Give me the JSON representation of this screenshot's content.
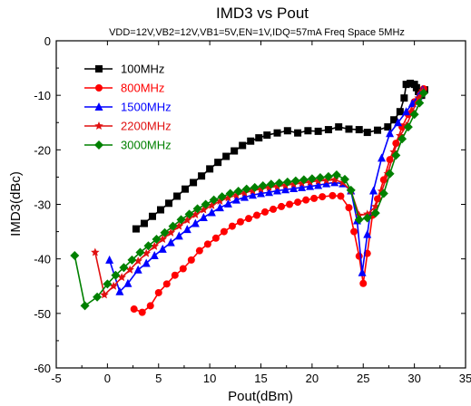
{
  "chart_data": {
    "type": "line",
    "title": "IMD3 vs  Pout",
    "subtitle": "VDD=12V,VB2=12V,VB1=5V,EN=1V,IDQ=57mA Freq Space 5MHz",
    "xlabel": "Pout(dBm)",
    "ylabel": "IMD3(dBc)",
    "xlim": [
      -5,
      35
    ],
    "ylim": [
      -60,
      0
    ],
    "xticks": [
      "-5",
      "0",
      "5",
      "10",
      "15",
      "20",
      "25",
      "30",
      "35"
    ],
    "yticks": [
      "0",
      "-10",
      "-20",
      "-30",
      "-40",
      "-50",
      "-60"
    ],
    "grid": false,
    "legend_position": "top-left",
    "series": [
      {
        "name": "100MHz",
        "color": "#000000",
        "marker": "square",
        "points": [
          [
            2.8,
            -34.5
          ],
          [
            3.6,
            -33.5
          ],
          [
            4.4,
            -32.2
          ],
          [
            5.2,
            -31.0
          ],
          [
            6.0,
            -29.8
          ],
          [
            6.8,
            -28.5
          ],
          [
            7.6,
            -27.2
          ],
          [
            8.4,
            -26.0
          ],
          [
            9.2,
            -24.8
          ],
          [
            10.0,
            -23.5
          ],
          [
            10.8,
            -22.3
          ],
          [
            11.6,
            -21.2
          ],
          [
            12.4,
            -20.2
          ],
          [
            13.2,
            -19.2
          ],
          [
            14.0,
            -18.4
          ],
          [
            14.8,
            -17.8
          ],
          [
            15.6,
            -17.3
          ],
          [
            16.6,
            -16.9
          ],
          [
            17.6,
            -16.5
          ],
          [
            18.6,
            -16.9
          ],
          [
            19.6,
            -16.5
          ],
          [
            20.6,
            -16.6
          ],
          [
            21.6,
            -16.3
          ],
          [
            22.6,
            -15.8
          ],
          [
            23.6,
            -16.2
          ],
          [
            24.6,
            -16.3
          ],
          [
            25.4,
            -16.8
          ],
          [
            26.4,
            -16.4
          ],
          [
            27.4,
            -15.8
          ],
          [
            28.0,
            -14.5
          ],
          [
            28.6,
            -13.0
          ],
          [
            29.0,
            -10.5
          ],
          [
            29.2,
            -8.0
          ],
          [
            29.6,
            -7.8
          ],
          [
            30.0,
            -8.0
          ],
          [
            30.2,
            -8.6
          ],
          [
            30.4,
            -9.3
          ],
          [
            30.7,
            -10.0
          ],
          [
            31.0,
            -9.0
          ]
        ]
      },
      {
        "name": "800MHz",
        "color": "#ff0000",
        "marker": "circle",
        "points": [
          [
            2.6,
            -49.2
          ],
          [
            3.4,
            -49.8
          ],
          [
            4.2,
            -48.6
          ],
          [
            5.0,
            -46.2
          ],
          [
            5.8,
            -44.6
          ],
          [
            6.6,
            -43.0
          ],
          [
            7.4,
            -41.8
          ],
          [
            8.2,
            -40.2
          ],
          [
            9.0,
            -38.5
          ],
          [
            9.8,
            -37.3
          ],
          [
            10.6,
            -36.2
          ],
          [
            11.4,
            -35.0
          ],
          [
            12.2,
            -34.0
          ],
          [
            13.0,
            -33.2
          ],
          [
            13.8,
            -32.6
          ],
          [
            14.6,
            -32.0
          ],
          [
            15.4,
            -31.4
          ],
          [
            16.2,
            -30.9
          ],
          [
            17.0,
            -30.4
          ],
          [
            17.8,
            -30.0
          ],
          [
            18.6,
            -29.6
          ],
          [
            19.4,
            -29.2
          ],
          [
            20.2,
            -28.9
          ],
          [
            21.0,
            -28.6
          ],
          [
            22.0,
            -28.4
          ],
          [
            22.8,
            -28.5
          ],
          [
            23.6,
            -30.6
          ],
          [
            24.1,
            -35.0
          ],
          [
            24.6,
            -39.5
          ],
          [
            25.0,
            -44.5
          ],
          [
            25.4,
            -39.0
          ],
          [
            25.9,
            -32.0
          ],
          [
            26.4,
            -29.0
          ],
          [
            27.0,
            -25.5
          ],
          [
            27.6,
            -21.8
          ],
          [
            28.2,
            -18.8
          ],
          [
            28.8,
            -15.8
          ],
          [
            29.4,
            -13.5
          ],
          [
            30.0,
            -11.2
          ],
          [
            30.6,
            -9.8
          ],
          [
            30.9,
            -8.8
          ]
        ]
      },
      {
        "name": "1500MHz",
        "color": "#0000ff",
        "marker": "triangle",
        "points": [
          [
            0.2,
            -40.2
          ],
          [
            1.2,
            -46.0
          ],
          [
            2.0,
            -44.5
          ],
          [
            3.0,
            -42.0
          ],
          [
            3.8,
            -40.8
          ],
          [
            4.6,
            -39.4
          ],
          [
            5.4,
            -38.2
          ],
          [
            6.2,
            -37.0
          ],
          [
            7.0,
            -35.8
          ],
          [
            7.8,
            -34.6
          ],
          [
            8.6,
            -33.5
          ],
          [
            9.4,
            -32.4
          ],
          [
            10.2,
            -31.5
          ],
          [
            11.0,
            -30.6
          ],
          [
            11.8,
            -29.9
          ],
          [
            12.6,
            -29.2
          ],
          [
            13.4,
            -28.7
          ],
          [
            14.2,
            -28.3
          ],
          [
            15.0,
            -28.0
          ],
          [
            15.8,
            -27.8
          ],
          [
            16.6,
            -27.5
          ],
          [
            17.4,
            -27.3
          ],
          [
            18.2,
            -27.1
          ],
          [
            19.0,
            -26.9
          ],
          [
            19.8,
            -26.7
          ],
          [
            20.6,
            -26.5
          ],
          [
            21.4,
            -26.2
          ],
          [
            22.2,
            -26.0
          ],
          [
            23.0,
            -26.2
          ],
          [
            23.8,
            -27.5
          ],
          [
            24.4,
            -33.0
          ],
          [
            24.9,
            -42.5
          ],
          [
            25.4,
            -35.5
          ],
          [
            26.0,
            -27.5
          ],
          [
            26.8,
            -21.5
          ],
          [
            27.6,
            -17.0
          ],
          [
            28.4,
            -15.0
          ],
          [
            29.2,
            -13.0
          ],
          [
            29.8,
            -11.5
          ],
          [
            30.4,
            -10.2
          ],
          [
            30.8,
            -9.0
          ]
        ]
      },
      {
        "name": "2200MHz",
        "color": "#e01010",
        "marker": "star",
        "points": [
          [
            -1.2,
            -38.8
          ],
          [
            -0.3,
            -46.6
          ],
          [
            0.6,
            -45.0
          ],
          [
            1.4,
            -43.4
          ],
          [
            2.2,
            -42.0
          ],
          [
            3.0,
            -40.4
          ],
          [
            3.8,
            -39.0
          ],
          [
            4.6,
            -37.7
          ],
          [
            5.4,
            -36.4
          ],
          [
            6.2,
            -35.2
          ],
          [
            7.0,
            -34.0
          ],
          [
            7.8,
            -32.9
          ],
          [
            8.6,
            -31.9
          ],
          [
            9.4,
            -31.0
          ],
          [
            10.2,
            -30.2
          ],
          [
            11.0,
            -29.4
          ],
          [
            11.8,
            -28.8
          ],
          [
            12.6,
            -28.3
          ],
          [
            13.4,
            -27.9
          ],
          [
            14.2,
            -27.5
          ],
          [
            15.0,
            -27.2
          ],
          [
            15.8,
            -26.9
          ],
          [
            16.6,
            -26.7
          ],
          [
            17.4,
            -26.5
          ],
          [
            18.2,
            -26.3
          ],
          [
            19.0,
            -26.1
          ],
          [
            19.8,
            -25.9
          ],
          [
            20.6,
            -25.7
          ],
          [
            21.4,
            -25.6
          ],
          [
            22.2,
            -25.5
          ],
          [
            23.0,
            -26.0
          ],
          [
            23.8,
            -27.5
          ],
          [
            24.6,
            -32.0
          ],
          [
            25.4,
            -31.8
          ],
          [
            26.2,
            -30.4
          ],
          [
            26.8,
            -27.6
          ],
          [
            27.4,
            -24.4
          ],
          [
            28.0,
            -20.4
          ],
          [
            28.6,
            -17.4
          ],
          [
            29.2,
            -15.6
          ],
          [
            29.8,
            -13.0
          ],
          [
            30.4,
            -10.5
          ],
          [
            30.8,
            -9.2
          ]
        ]
      },
      {
        "name": "3000MHz",
        "color": "#008000",
        "marker": "diamond",
        "points": [
          [
            -3.2,
            -39.4
          ],
          [
            -2.2,
            -48.6
          ],
          [
            -1.0,
            -47.0
          ],
          [
            0.0,
            -44.6
          ],
          [
            0.8,
            -43.0
          ],
          [
            1.6,
            -41.6
          ],
          [
            2.4,
            -40.2
          ],
          [
            3.2,
            -38.8
          ],
          [
            4.0,
            -37.6
          ],
          [
            4.8,
            -36.4
          ],
          [
            5.6,
            -35.2
          ],
          [
            6.4,
            -34.0
          ],
          [
            7.2,
            -32.8
          ],
          [
            8.0,
            -31.8
          ],
          [
            8.8,
            -30.8
          ],
          [
            9.6,
            -30.0
          ],
          [
            10.4,
            -29.2
          ],
          [
            11.2,
            -28.6
          ],
          [
            12.0,
            -28.0
          ],
          [
            12.8,
            -27.6
          ],
          [
            13.6,
            -27.2
          ],
          [
            14.4,
            -26.9
          ],
          [
            15.2,
            -26.6
          ],
          [
            16.0,
            -26.3
          ],
          [
            16.8,
            -26.1
          ],
          [
            17.6,
            -25.9
          ],
          [
            18.4,
            -25.7
          ],
          [
            19.2,
            -25.5
          ],
          [
            20.0,
            -25.3
          ],
          [
            20.8,
            -25.1
          ],
          [
            21.6,
            -24.9
          ],
          [
            22.4,
            -24.6
          ],
          [
            23.2,
            -25.4
          ],
          [
            23.8,
            -27.4
          ],
          [
            24.6,
            -32.8
          ],
          [
            25.4,
            -32.5
          ],
          [
            26.2,
            -31.6
          ],
          [
            27.0,
            -28.0
          ],
          [
            27.6,
            -24.4
          ],
          [
            28.2,
            -21.0
          ],
          [
            28.8,
            -18.0
          ],
          [
            29.4,
            -15.8
          ],
          [
            30.0,
            -13.5
          ],
          [
            30.5,
            -11.4
          ],
          [
            30.9,
            -9.6
          ]
        ]
      }
    ]
  }
}
